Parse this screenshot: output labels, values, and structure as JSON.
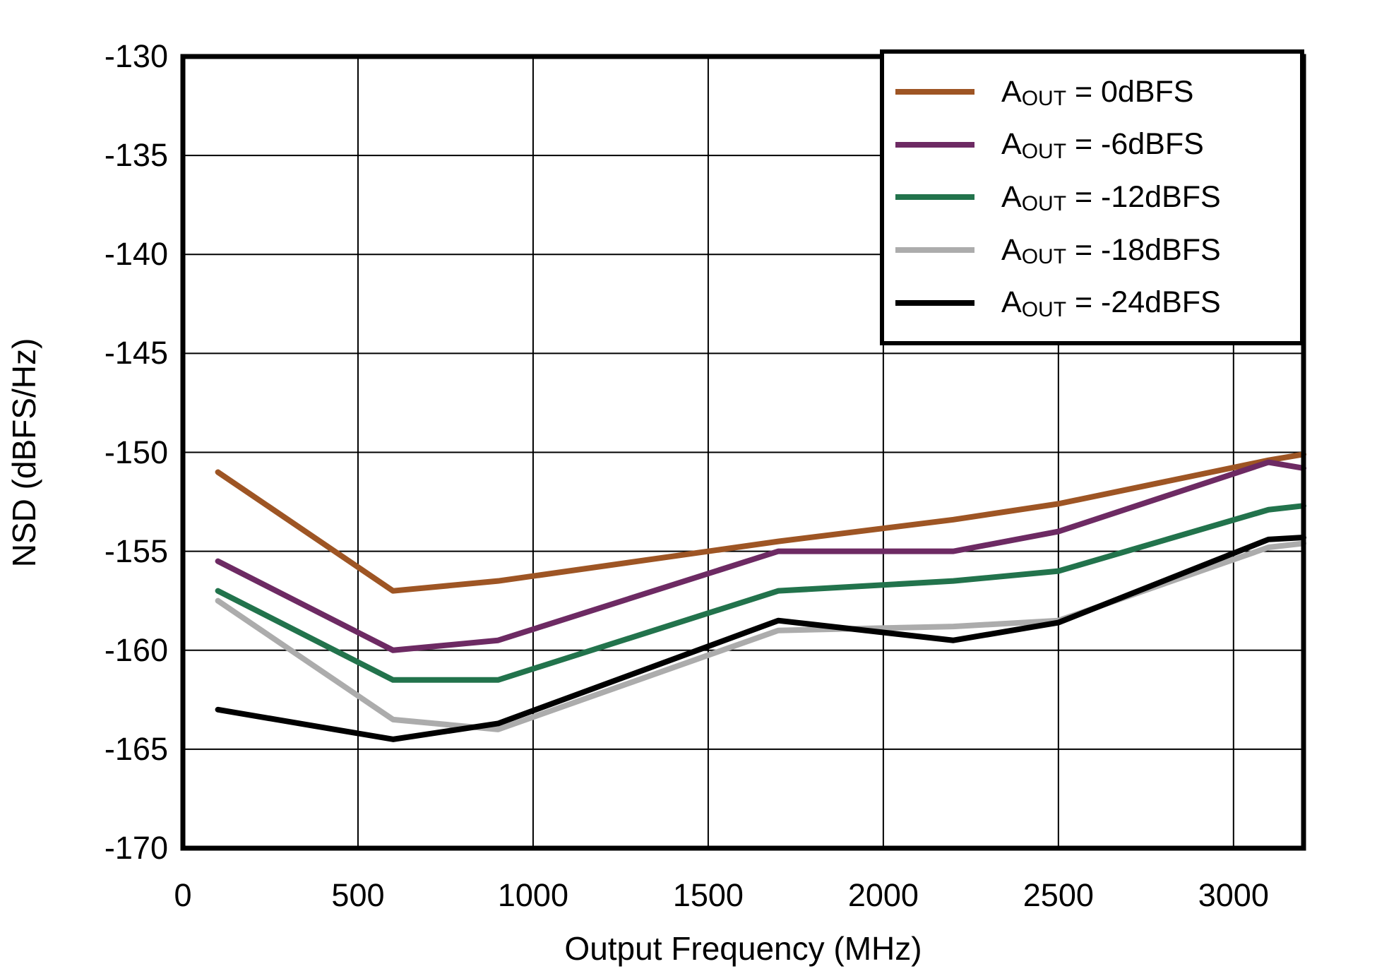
{
  "chart_data": {
    "type": "line",
    "title": "",
    "xlabel": "Output Frequency (MHz)",
    "ylabel": "NSD (dBFS/Hz)",
    "xlim": [
      0,
      3200
    ],
    "ylim": [
      -170,
      -130
    ],
    "grid": true,
    "legend_position": "top-right",
    "frame_color": "#000000",
    "grid_color": "#000000",
    "x_ticks": [
      {
        "v": 0,
        "label": "0"
      },
      {
        "v": 500,
        "label": "500"
      },
      {
        "v": 1000,
        "label": "1000"
      },
      {
        "v": 1500,
        "label": "1500"
      },
      {
        "v": 2000,
        "label": "2000"
      },
      {
        "v": 2500,
        "label": "2500"
      },
      {
        "v": 3000,
        "label": "3000"
      }
    ],
    "y_ticks": [
      {
        "v": -130,
        "label": "-130"
      },
      {
        "v": -135,
        "label": "-135"
      },
      {
        "v": -140,
        "label": "-140"
      },
      {
        "v": -145,
        "label": "-145"
      },
      {
        "v": -150,
        "label": "-150"
      },
      {
        "v": -155,
        "label": "-155"
      },
      {
        "v": -160,
        "label": "-160"
      },
      {
        "v": -165,
        "label": "-165"
      },
      {
        "v": -170,
        "label": "-170"
      }
    ],
    "x": [
      100,
      600,
      900,
      1700,
      2200,
      2500,
      3100,
      3200
    ],
    "series": [
      {
        "name": "AOUT = 0dBFS",
        "legend_base": "A",
        "legend_sub": "OUT",
        "legend_rest": " = 0dBFS",
        "color": "#9E5524",
        "values": [
          -151.0,
          -157.0,
          -156.5,
          -154.5,
          -153.4,
          -152.6,
          -150.4,
          -150.1
        ]
      },
      {
        "name": "AOUT = -6dBFS",
        "legend_base": "A",
        "legend_sub": "OUT",
        "legend_rest": " = -6dBFS",
        "color": "#6D2A63",
        "values": [
          -155.5,
          -160.0,
          -159.5,
          -155.0,
          -155.0,
          -154.0,
          -150.5,
          -150.8
        ]
      },
      {
        "name": "AOUT = -12dBFS",
        "legend_base": "A",
        "legend_sub": "OUT",
        "legend_rest": " = -12dBFS",
        "color": "#22734C",
        "values": [
          -157.0,
          -161.5,
          -161.5,
          -157.0,
          -156.5,
          -156.0,
          -152.9,
          -152.7
        ]
      },
      {
        "name": "AOUT = -18dBFS",
        "legend_base": "A",
        "legend_sub": "OUT",
        "legend_rest": " = -18dBFS",
        "color": "#ACACAC",
        "values": [
          -157.5,
          -163.5,
          -164.0,
          -159.0,
          -158.8,
          -158.5,
          -154.8,
          -154.6
        ]
      },
      {
        "name": "AOUT = -24dBFS",
        "legend_base": "A",
        "legend_sub": "OUT",
        "legend_rest": " = -24dBFS",
        "color": "#000000",
        "values": [
          -163.0,
          -164.5,
          -163.7,
          -158.5,
          -159.5,
          -158.6,
          -154.4,
          -154.3
        ]
      }
    ]
  }
}
